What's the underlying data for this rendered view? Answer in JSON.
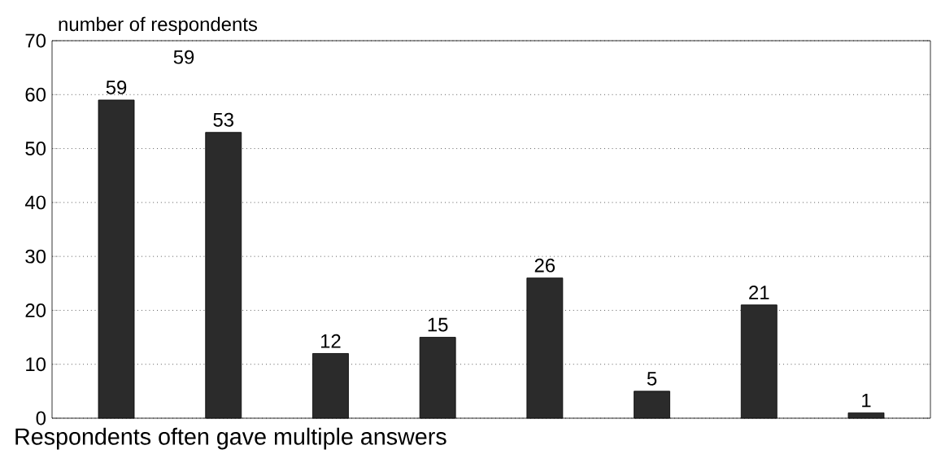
{
  "chart_data": {
    "type": "bar",
    "ylabel": "number of respondents",
    "categories": [
      null,
      null,
      null,
      null,
      null,
      null,
      null,
      null
    ],
    "values": [
      59,
      53,
      12,
      15,
      26,
      5,
      21,
      1
    ],
    "color": "#2b2b2b",
    "ylim": [
      0,
      70
    ],
    "yticks": [
      0,
      10,
      20,
      30,
      40,
      50,
      60,
      70
    ],
    "grid": "y",
    "data_labels": true,
    "annotations": [
      "59",
      "Respondents often gave multiple answers"
    ]
  }
}
